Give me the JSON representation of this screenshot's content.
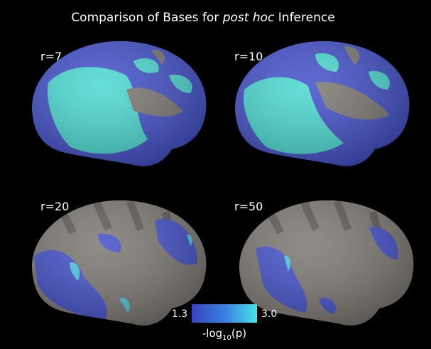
{
  "title": {
    "before": "Comparison of Bases for ",
    "italic": "post hoc",
    "after": " Inference"
  },
  "panels": [
    {
      "label": "r=7"
    },
    {
      "label": "r=10"
    },
    {
      "label": "r=20"
    },
    {
      "label": "r=50"
    }
  ],
  "colorbar": {
    "min_label": "1.3",
    "max_label": "3.0",
    "axis_label": {
      "base": "-log",
      "subscript": "10",
      "suffix": "(p)"
    }
  }
}
